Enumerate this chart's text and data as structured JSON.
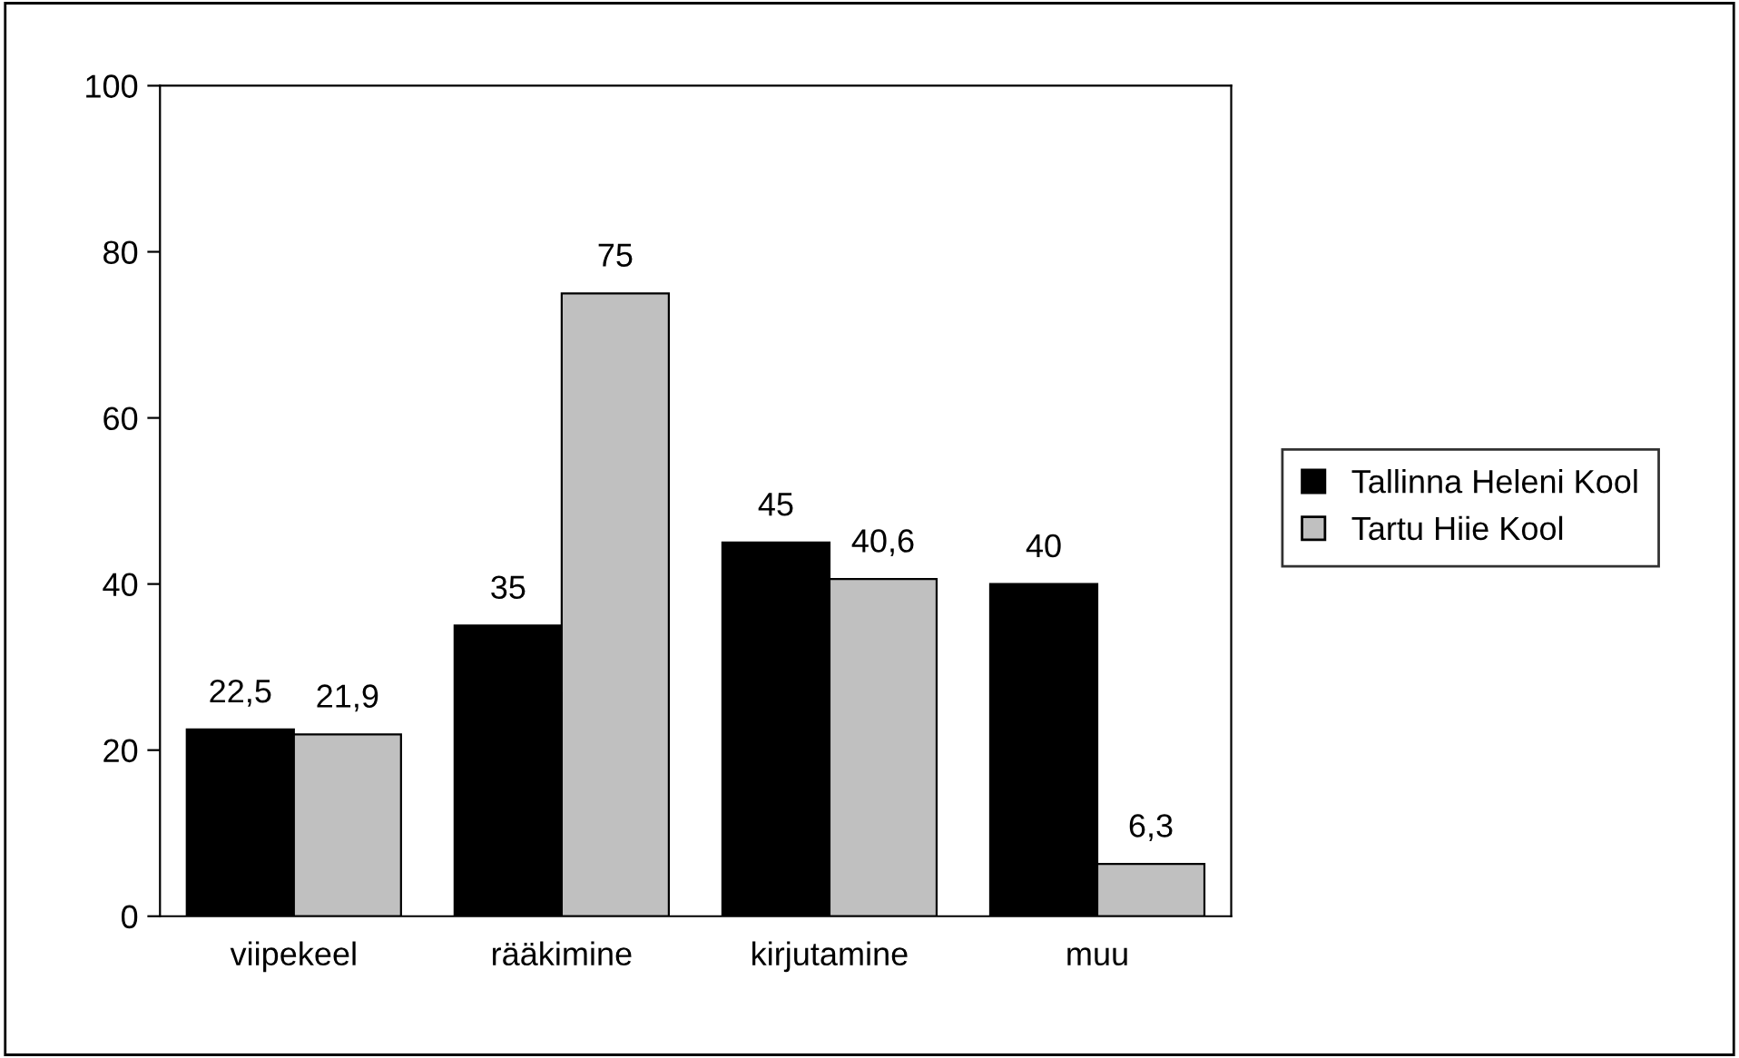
{
  "chart_data": {
    "type": "bar",
    "categories": [
      "viipekeel",
      "rääkimine",
      "kirjutamine",
      "muu"
    ],
    "series": [
      {
        "name": "Tallinna Heleni Kool",
        "color": "#000000",
        "values": [
          22.5,
          35,
          45,
          40
        ],
        "value_labels": [
          "22,5",
          "35",
          "45",
          "40"
        ]
      },
      {
        "name": "Tartu Hiie Kool",
        "color": "#c0c0c0",
        "values": [
          21.9,
          75,
          40.6,
          6.3
        ],
        "value_labels": [
          "21,9",
          "75",
          "40,6",
          "6,3"
        ]
      }
    ],
    "ylim": [
      0,
      100
    ],
    "yticks": [
      0,
      20,
      40,
      60,
      80,
      100
    ],
    "grid": false,
    "legend": "right"
  }
}
